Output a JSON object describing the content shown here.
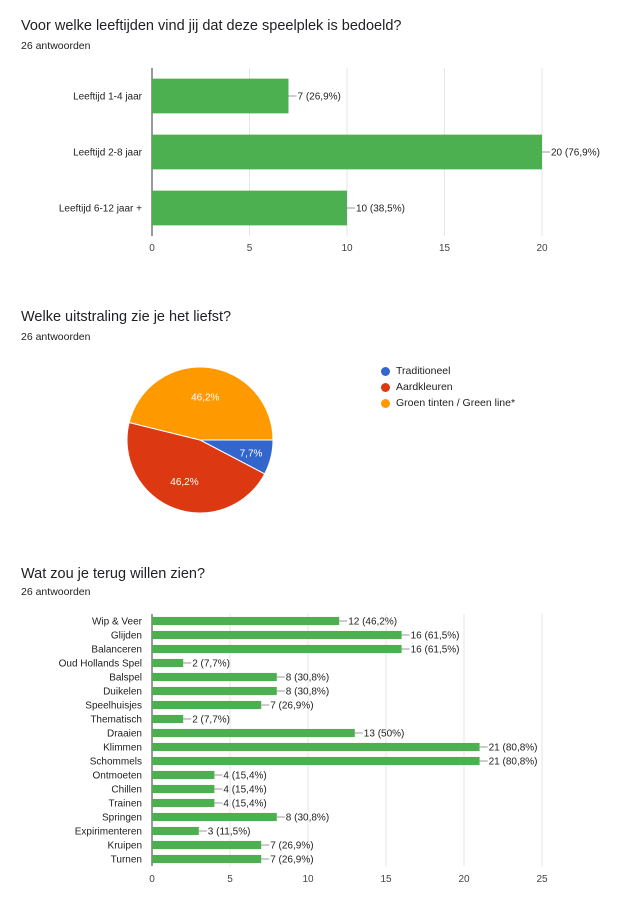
{
  "charts": [
    {
      "title": "Voor welke leeftijden vind jij dat deze speelplek is bedoeld?",
      "responses": "26 antwoorden"
    },
    {
      "title": "Welke uitstraling zie je het liefst?",
      "responses": "26 antwoorden"
    },
    {
      "title": "Wat zou je terug willen zien?",
      "responses": "26 antwoorden"
    }
  ],
  "chart_data": [
    {
      "type": "bar",
      "orientation": "horizontal",
      "title": "Voor welke leeftijden vind jij dat deze speelplek is bedoeld?",
      "categories": [
        "Leeftijd 1-4 jaar",
        "Leeftijd 2-8 jaar",
        "Leeftijd 6-12 jaar +"
      ],
      "values": [
        7,
        20,
        10
      ],
      "labels": [
        "7 (26,9%)",
        "20 (76,9%)",
        "10 (38,5%)"
      ],
      "xlim": [
        0,
        20
      ],
      "ticks": [
        0,
        5,
        10,
        15,
        20
      ],
      "color": "#4caf50",
      "grid": true
    },
    {
      "type": "pie",
      "title": "Welke uitstraling zie je het liefst?",
      "categories": [
        "Traditioneel",
        "Aardkleuren",
        "Groen tinten / Green line*"
      ],
      "values": [
        7.7,
        46.2,
        46.2
      ],
      "labels": [
        "7,7%",
        "46,2%",
        "46,2%"
      ],
      "colors": [
        "#3366cc",
        "#dc3912",
        "#ff9900"
      ],
      "legend": "right"
    },
    {
      "type": "bar",
      "orientation": "horizontal",
      "title": "Wat zou je terug willen zien?",
      "categories": [
        "Wip & Veer",
        "Glijden",
        "Balanceren",
        "Oud Hollands Spel",
        "Balspel",
        "Duikelen",
        "Speelhuisjes",
        "Thematisch",
        "Draaien",
        "Klimmen",
        "Schommels",
        "Ontmoeten",
        "Chillen",
        "Trainen",
        "Springen",
        "Expirimenteren",
        "Kruipen",
        "Turnen"
      ],
      "values": [
        12,
        16,
        16,
        2,
        8,
        8,
        7,
        2,
        13,
        21,
        21,
        4,
        4,
        4,
        8,
        3,
        7,
        7
      ],
      "labels": [
        "12 (46,2%)",
        "16 (61,5%)",
        "16 (61,5%)",
        "2 (7,7%)",
        "8 (30,8%)",
        "8 (30,8%)",
        "7 (26,9%)",
        "2 (7,7%)",
        "13 (50%)",
        "21 (80,8%)",
        "21 (80,8%)",
        "4 (15,4%)",
        "4 (15,4%)",
        "4 (15,4%)",
        "8 (30,8%)",
        "3 (11,5%)",
        "7 (26,9%)",
        "7 (26,9%)"
      ],
      "xlim": [
        0,
        25
      ],
      "ticks": [
        0,
        5,
        10,
        15,
        20,
        25
      ],
      "color": "#4caf50",
      "grid": true
    }
  ]
}
